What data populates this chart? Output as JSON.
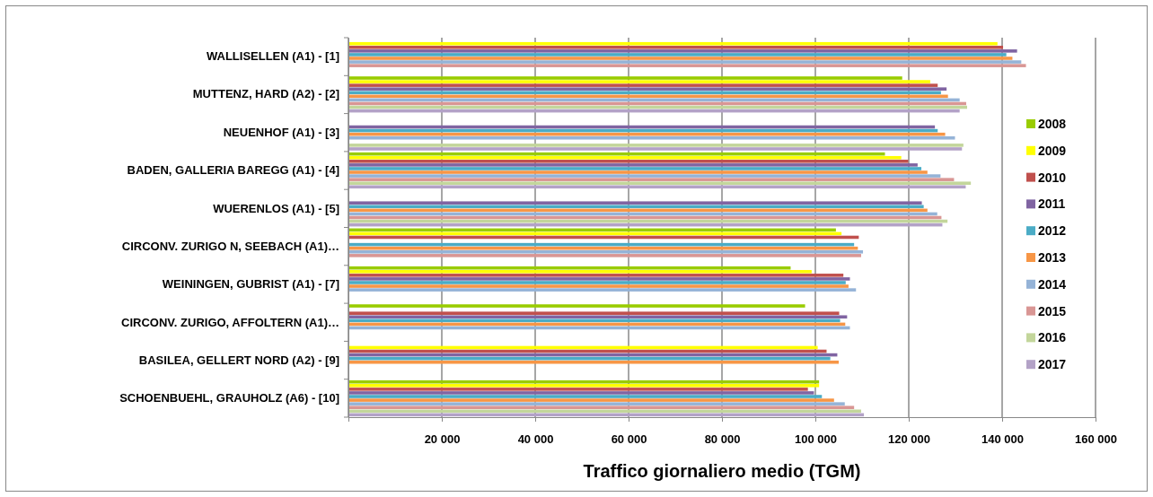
{
  "chart_data": {
    "type": "bar",
    "orientation": "horizontal",
    "xlabel": "Traffico giornaliero medio (TGM)",
    "categories": [
      "WALLISELLEN (A1) - [1]",
      "MUTTENZ, HARD (A2) - [2]",
      "NEUENHOF (A1) - [3]",
      "BADEN, GALLERIA BAREGG (A1) - [4]",
      "WUERENLOS (A1) - [5]",
      "CIRCONV. ZURIGO N, SEEBACH (A1)…",
      "WEININGEN, GUBRIST (A1) - [7]",
      "CIRCONV. ZURIGO, AFFOLTERN (A1)…",
      "BASILEA, GELLERT NORD (A2) - [9]",
      "SCHOENBUEHL, GRAUHOLZ (A6) - [10]"
    ],
    "series": [
      {
        "name": "2008",
        "color": "#99cc00",
        "values": [
          null,
          118600,
          null,
          114900,
          null,
          104400,
          94700,
          97800,
          null,
          100800
        ]
      },
      {
        "name": "2009",
        "color": "#ffff00",
        "values": [
          139000,
          124600,
          null,
          118400,
          null,
          105600,
          99200,
          null,
          100500,
          100800
        ]
      },
      {
        "name": "2010",
        "color": "#c0504d",
        "values": [
          140200,
          126200,
          null,
          119900,
          null,
          109300,
          106000,
          105100,
          102400,
          98400
        ]
      },
      {
        "name": "2011",
        "color": "#8064a2",
        "values": [
          143200,
          128100,
          125600,
          121900,
          122800,
          null,
          107400,
          106800,
          104700,
          99700
        ]
      },
      {
        "name": "2012",
        "color": "#4bacc6",
        "values": [
          140900,
          126900,
          126200,
          122700,
          123200,
          108300,
          106500,
          105300,
          103200,
          101400
        ]
      },
      {
        "name": "2013",
        "color": "#f79646",
        "values": [
          142200,
          128400,
          127800,
          124000,
          124000,
          109100,
          107100,
          106400,
          105000,
          104000
        ]
      },
      {
        "name": "2014",
        "color": "#95b3d7",
        "values": [
          144100,
          130900,
          129900,
          126800,
          126100,
          110200,
          108700,
          107400,
          null,
          106300
        ]
      },
      {
        "name": "2015",
        "color": "#d99694",
        "values": [
          145100,
          132300,
          null,
          129700,
          127000,
          109800,
          null,
          null,
          null,
          108300
        ]
      },
      {
        "name": "2016",
        "color": "#c3d69b",
        "values": [
          null,
          132500,
          131700,
          133300,
          128300,
          null,
          null,
          null,
          null,
          109800
        ]
      },
      {
        "name": "2017",
        "color": "#b3a2c7",
        "values": [
          null,
          130900,
          131400,
          132200,
          127200,
          null,
          null,
          null,
          null,
          110400
        ]
      }
    ],
    "xlim": [
      0,
      160000
    ],
    "xticks": [
      {
        "value": 0,
        "label": null
      },
      {
        "value": 20000,
        "label": "20 000"
      },
      {
        "value": 40000,
        "label": "40 000"
      },
      {
        "value": 60000,
        "label": "60 000"
      },
      {
        "value": 80000,
        "label": "80 000"
      },
      {
        "value": 100000,
        "label": "100 000"
      },
      {
        "value": 120000,
        "label": "120 000"
      },
      {
        "value": 140000,
        "label": "140 000"
      },
      {
        "value": 160000,
        "label": "160 000"
      }
    ],
    "grid": "x",
    "legend": "right"
  }
}
